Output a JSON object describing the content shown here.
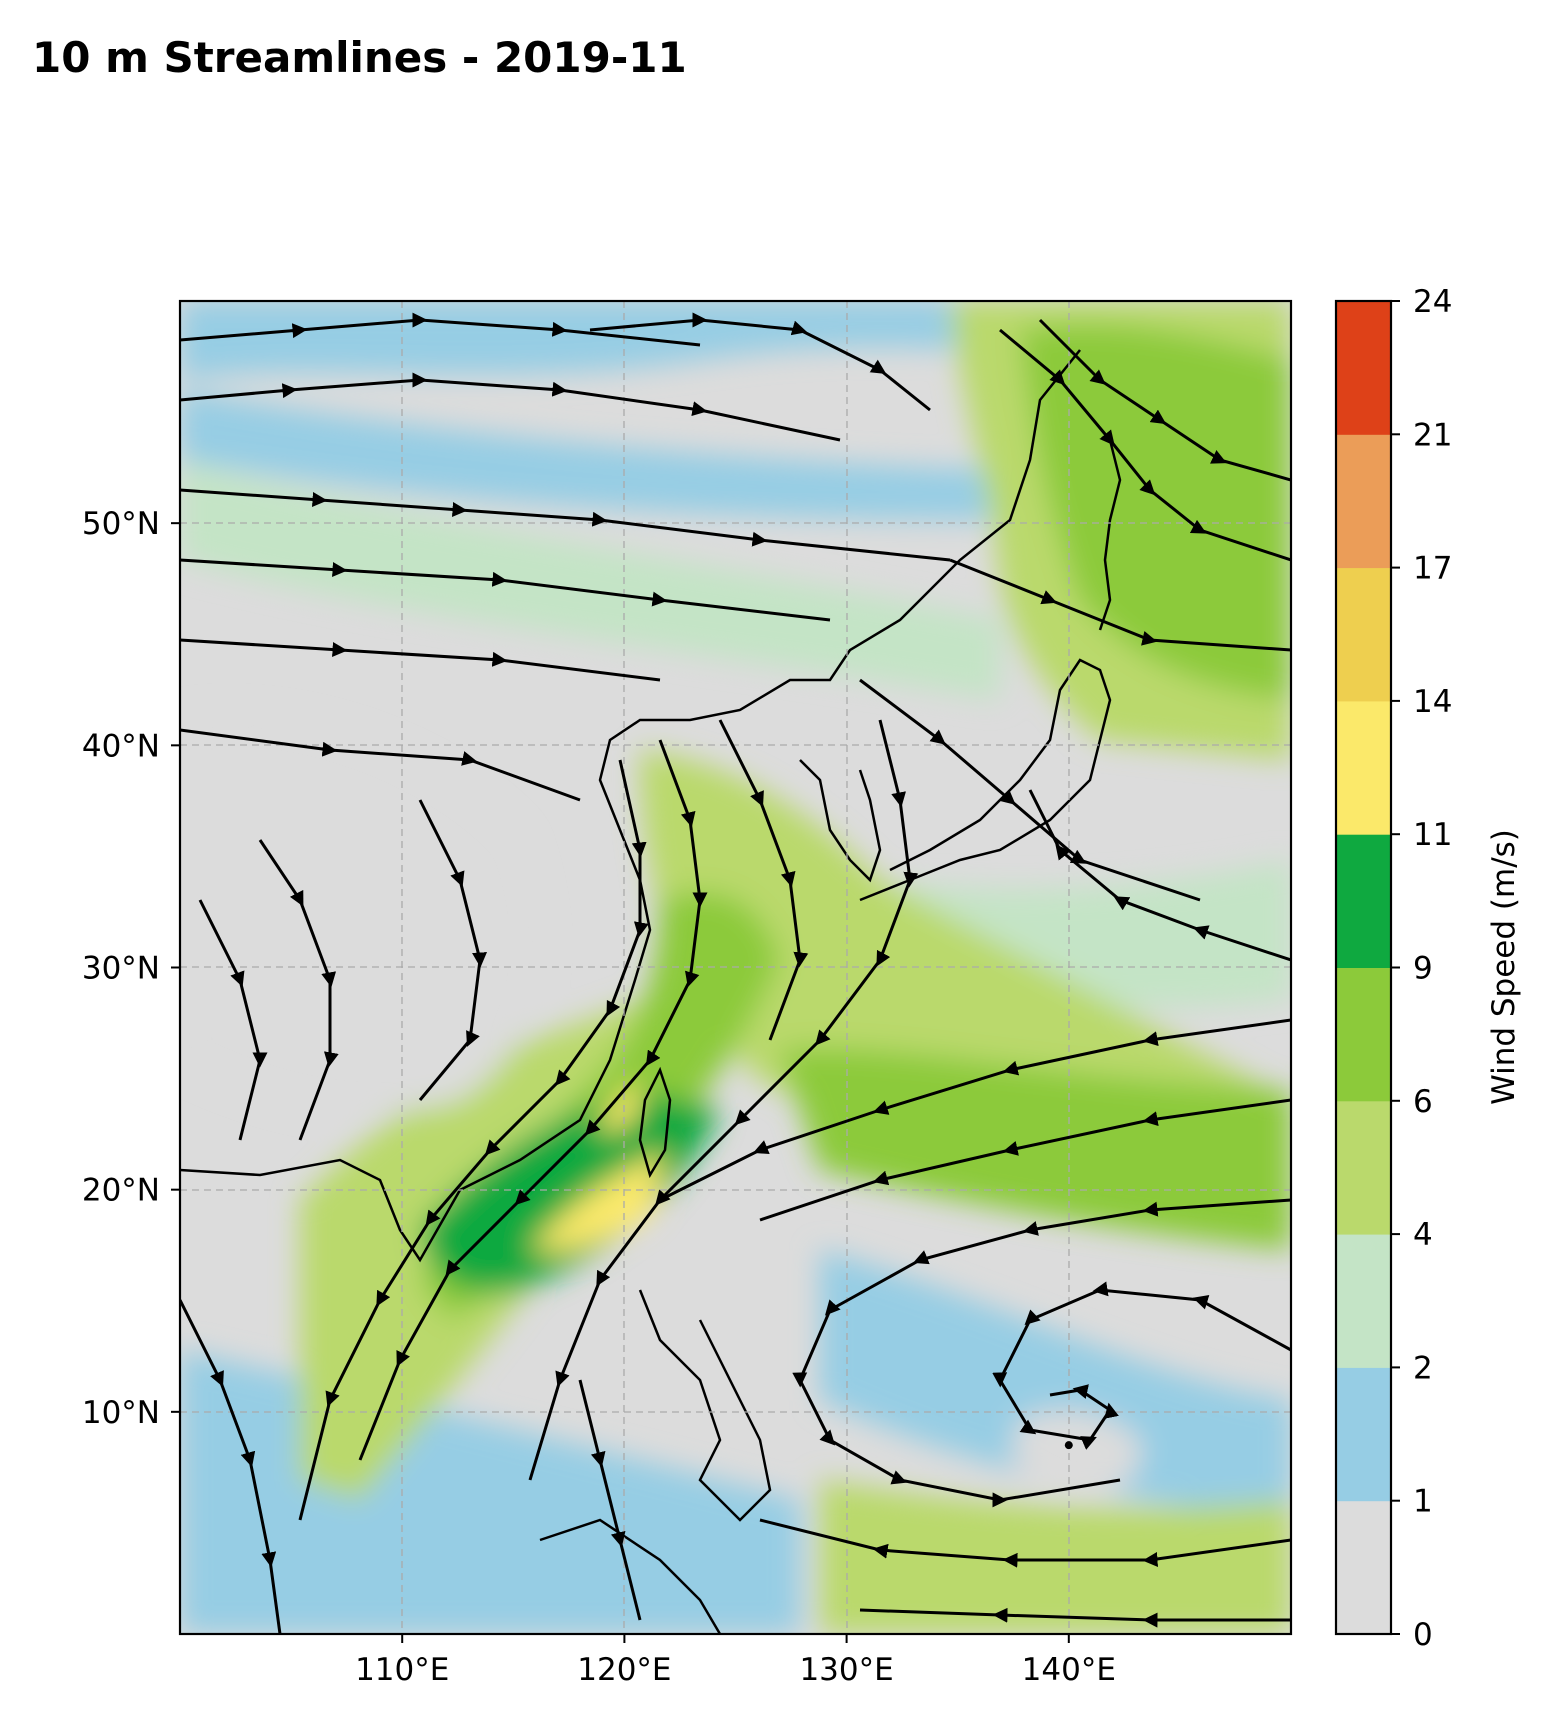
{
  "title": "10 m Streamlines - 2019-11",
  "chart_data": {
    "type": "heatmap",
    "title": "10 m Streamlines - 2019-11",
    "overlay": "streamlines",
    "x_axis": {
      "label": "",
      "range": [
        100,
        150
      ],
      "ticks": [
        110,
        120,
        130,
        140
      ],
      "tick_labels": [
        "110°E",
        "120°E",
        "130°E",
        "140°E"
      ]
    },
    "y_axis": {
      "label": "",
      "range": [
        0,
        60
      ],
      "ticks": [
        10,
        20,
        30,
        40,
        50
      ],
      "tick_labels": [
        "10°N",
        "20°N",
        "30°N",
        "40°N",
        "50°N"
      ]
    },
    "grid": true,
    "colorbar": {
      "label": "Wind Speed (m/s)",
      "levels": [
        0,
        1,
        2,
        4,
        6,
        9,
        11,
        14,
        17,
        21,
        24
      ],
      "tick_labels": [
        "0",
        "1",
        "2",
        "4",
        "6",
        "9",
        "11",
        "14",
        "17",
        "21",
        "24"
      ],
      "colors": [
        "#dcdcdc",
        "#96cde4",
        "#c4e4c6",
        "#bad96c",
        "#8cca3a",
        "#0fa940",
        "#fbe96a",
        "#eecf4f",
        "#eb9d58",
        "#de4118"
      ]
    },
    "wind_maxima": [
      {
        "lon": 118,
        "lat": 19,
        "speed_class": "11-14"
      },
      {
        "lon": 120,
        "lat": 24,
        "speed_class": "11-14"
      },
      {
        "lon": 115,
        "lat": 18,
        "speed_class": "9-11"
      },
      {
        "lon": 122,
        "lat": 22,
        "speed_class": "9-11"
      }
    ],
    "cyclonic_circulation_center": {
      "lon": 140,
      "lat": 8.5
    }
  }
}
